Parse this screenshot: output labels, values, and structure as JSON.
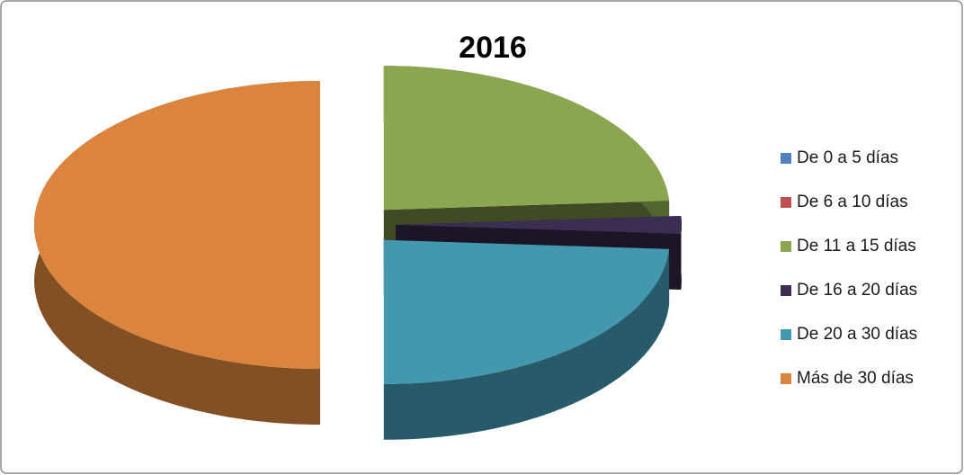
{
  "chart_data": {
    "type": "pie3d",
    "title": "2016",
    "categories": [
      "De 0 a 5 días",
      "De 6 a 10 días",
      "De 11 a 15 días",
      "De 16 a 20 días",
      "De 20 a 30 días",
      "Más de 30 días"
    ],
    "values": [
      0,
      0,
      24,
      2,
      24,
      50
    ],
    "colors": [
      "#4f81bd",
      "#c0504d",
      "#8aa64f",
      "#3b2e52",
      "#4398b0",
      "#db843d"
    ],
    "legend": "right"
  }
}
